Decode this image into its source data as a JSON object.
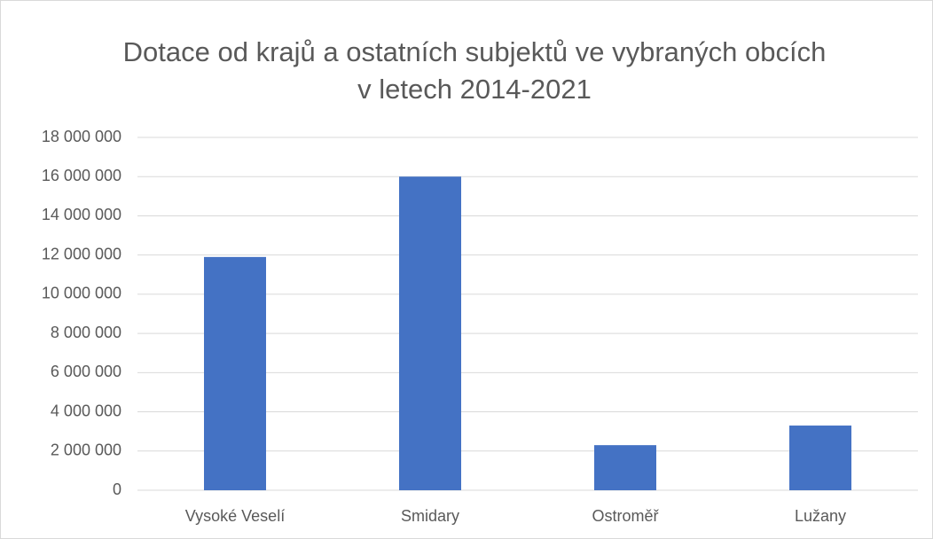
{
  "chart_data": {
    "type": "bar",
    "title": "Dotace od krajů a ostatních subjektů ve vybraných obcích v letech 2014-2021",
    "categories": [
      "Vysoké Veselí",
      "Smidary",
      "Ostroměř",
      "Lužany"
    ],
    "values": [
      11900000,
      16000000,
      2300000,
      3300000
    ],
    "color": "#4472c4",
    "ylim": [
      0,
      18000000
    ],
    "yticks": [
      0,
      {
        "value": 2000000,
        "label": "2 000 000"
      },
      {
        "value": 4000000,
        "label": "4 000 000"
      },
      {
        "value": 6000000,
        "label": "6 000 000"
      },
      {
        "value": 8000000,
        "label": "8 000 000"
      },
      {
        "value": 10000000,
        "label": "10 000 000"
      },
      {
        "value": 12000000,
        "label": "12 000 000"
      },
      {
        "value": 14000000,
        "label": "14 000 000"
      },
      {
        "value": 16000000,
        "label": "16 000 000"
      },
      {
        "value": 18000000,
        "label": "18 000 000"
      }
    ],
    "grid": true
  }
}
